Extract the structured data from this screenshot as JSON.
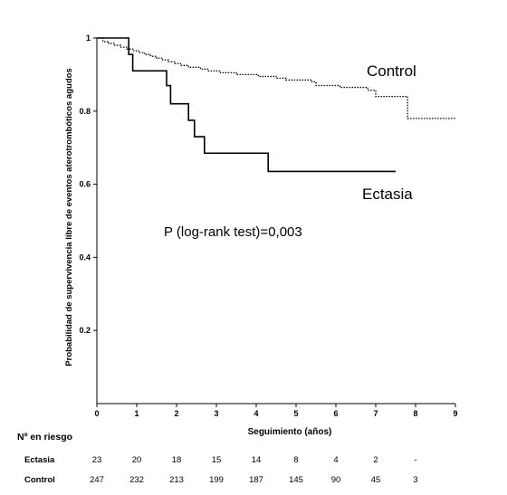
{
  "chart_data": {
    "type": "line",
    "ylabel": "Probabilidad de supervivencia libre de eventos aterotrombóticos agudos",
    "xlabel": "Seguimiento (años)",
    "xlim": [
      0,
      9
    ],
    "ylim": [
      0,
      1
    ],
    "x_ticks": [
      "0",
      "1",
      "2",
      "3",
      "4",
      "5",
      "6",
      "7",
      "8",
      "9"
    ],
    "y_ticks": [
      "0.2",
      "0.4",
      "0.6",
      "0.8",
      "1"
    ],
    "y_tick_values": [
      0.2,
      0.4,
      0.6,
      0.8,
      1
    ],
    "grid": false,
    "annotation": "P (log-rank test)=0,003",
    "series": [
      {
        "name": "Control",
        "style": "dotted",
        "steps": [
          [
            0,
            1.0
          ],
          [
            0.15,
            0.99
          ],
          [
            0.3,
            0.985
          ],
          [
            0.45,
            0.98
          ],
          [
            0.6,
            0.975
          ],
          [
            0.75,
            0.97
          ],
          [
            0.9,
            0.965
          ],
          [
            1.05,
            0.96
          ],
          [
            1.2,
            0.955
          ],
          [
            1.35,
            0.95
          ],
          [
            1.5,
            0.945
          ],
          [
            1.65,
            0.94
          ],
          [
            1.8,
            0.935
          ],
          [
            1.95,
            0.93
          ],
          [
            2.1,
            0.925
          ],
          [
            2.3,
            0.92
          ],
          [
            2.6,
            0.915
          ],
          [
            2.8,
            0.91
          ],
          [
            3.1,
            0.905
          ],
          [
            3.5,
            0.9
          ],
          [
            4.05,
            0.895
          ],
          [
            4.5,
            0.89
          ],
          [
            4.75,
            0.885
          ],
          [
            5.4,
            0.88
          ],
          [
            5.5,
            0.87
          ],
          [
            6.1,
            0.865
          ],
          [
            6.8,
            0.857
          ],
          [
            7.0,
            0.84
          ],
          [
            7.8,
            0.78
          ],
          [
            9.0,
            0.78
          ]
        ]
      },
      {
        "name": "Ectasia",
        "style": "solid",
        "steps": [
          [
            0,
            1.0
          ],
          [
            0.8,
            0.955
          ],
          [
            0.9,
            0.91
          ],
          [
            1.75,
            0.87
          ],
          [
            1.85,
            0.82
          ],
          [
            2.3,
            0.775
          ],
          [
            2.45,
            0.73
          ],
          [
            2.7,
            0.685
          ],
          [
            4.3,
            0.635
          ],
          [
            7.5,
            0.635
          ]
        ]
      }
    ]
  },
  "risk_table": {
    "title": "Nº en riesgo",
    "rows": [
      {
        "name": "Ectasia",
        "values": [
          "23",
          "20",
          "18",
          "15",
          "14",
          "8",
          "4",
          "2",
          "-"
        ]
      },
      {
        "name": "Control",
        "values": [
          "247",
          "232",
          "213",
          "199",
          "187",
          "145",
          "90",
          "45",
          "3"
        ]
      }
    ]
  }
}
